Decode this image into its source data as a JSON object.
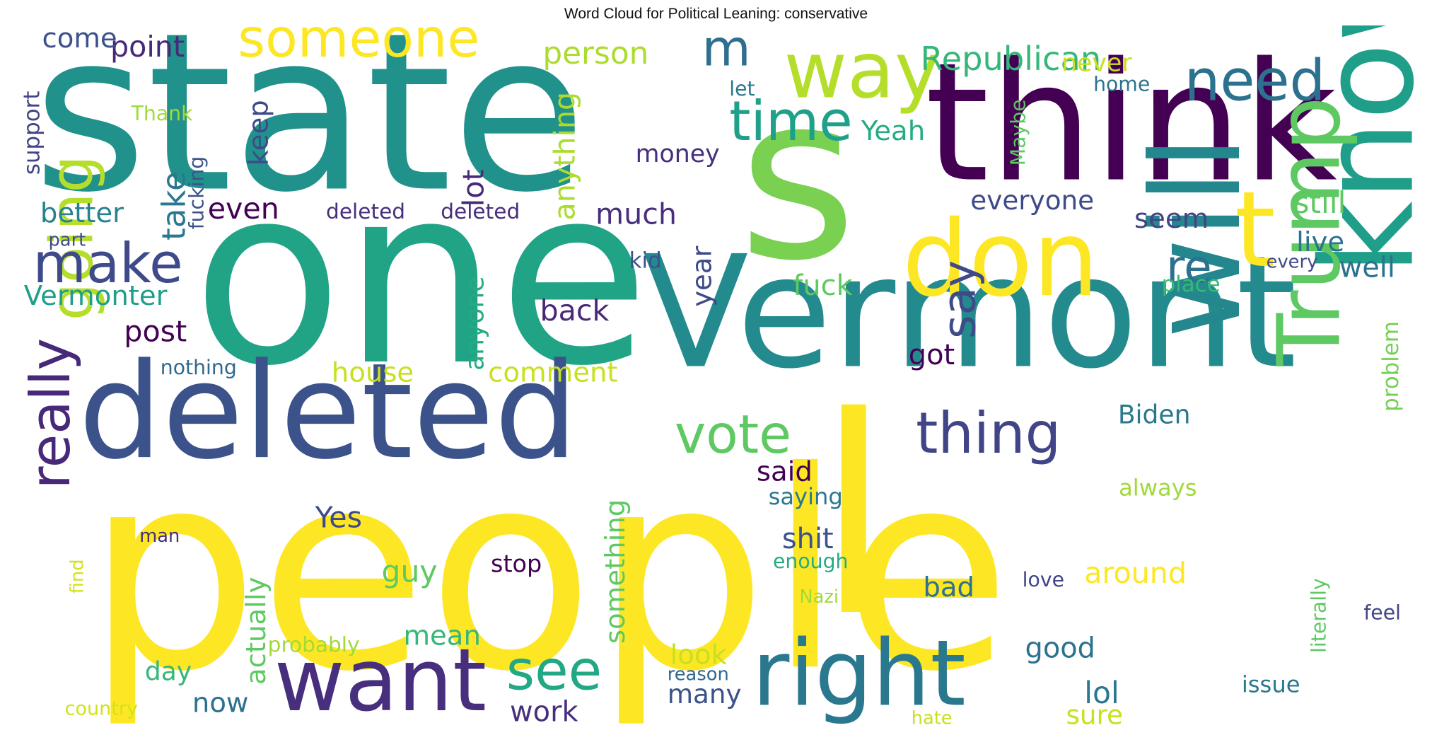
{
  "title": "Word Cloud for Political Leaning: conservative",
  "words": [
    {
      "text": "people",
      "color": "#fde725"
    },
    {
      "text": "state",
      "color": "#21918c"
    },
    {
      "text": "one",
      "color": "#21a386"
    },
    {
      "text": "think",
      "color": "#440154"
    },
    {
      "text": "Vermont",
      "color": "#238a8d"
    },
    {
      "text": "s",
      "color": "#7ad151"
    },
    {
      "text": "deleted",
      "color": "#3b528b"
    },
    {
      "text": "l",
      "color": "#fde725"
    },
    {
      "text": "will",
      "color": "#24878e"
    },
    {
      "text": "know",
      "color": "#1f9e89"
    },
    {
      "text": "don",
      "color": "#fde725"
    },
    {
      "text": "t",
      "color": "#fde725"
    },
    {
      "text": "want",
      "color": "#472f7d"
    },
    {
      "text": "right",
      "color": "#2a788e"
    },
    {
      "text": "Trump",
      "color": "#5ec962"
    },
    {
      "text": "way",
      "color": "#b5de2b"
    },
    {
      "text": "someone",
      "color": "#fde725"
    },
    {
      "text": "going",
      "color": "#b5de2b"
    },
    {
      "text": "really",
      "color": "#482878"
    },
    {
      "text": "make",
      "color": "#3e4a89"
    },
    {
      "text": "need",
      "color": "#2c728e"
    },
    {
      "text": "m",
      "color": "#2e6e8e"
    },
    {
      "text": "time",
      "color": "#1fa088"
    },
    {
      "text": "vote",
      "color": "#5ec962"
    },
    {
      "text": "thing",
      "color": "#414487"
    },
    {
      "text": "say",
      "color": "#3e4a89"
    },
    {
      "text": "see",
      "color": "#22a884"
    },
    {
      "text": "re",
      "color": "#2c728e"
    },
    {
      "text": "Republican",
      "color": "#35b779"
    },
    {
      "text": "Yeah",
      "color": "#25ab82"
    },
    {
      "text": "person",
      "color": "#addc30"
    },
    {
      "text": "point",
      "color": "#482878"
    },
    {
      "text": "come",
      "color": "#3b528b"
    },
    {
      "text": "never",
      "color": "#c8e020"
    },
    {
      "text": "let",
      "color": "#2a788e"
    },
    {
      "text": "home",
      "color": "#2c728e"
    },
    {
      "text": "Thank",
      "color": "#a0da39"
    },
    {
      "text": "support",
      "color": "#414487"
    },
    {
      "text": "fucking",
      "color": "#3b528b"
    },
    {
      "text": "keep",
      "color": "#3e4a89"
    },
    {
      "text": "anything",
      "color": "#addc30"
    },
    {
      "text": "money",
      "color": "#472f7d"
    },
    {
      "text": "Maybe",
      "color": "#5ec962"
    },
    {
      "text": "better",
      "color": "#26828e"
    },
    {
      "text": "take",
      "color": "#2a788e"
    },
    {
      "text": "lot",
      "color": "#482878"
    },
    {
      "text": "even",
      "color": "#440154"
    },
    {
      "text": "deleted",
      "color": "#472f7d"
    },
    {
      "text": "deleted",
      "color": "#472f7d"
    },
    {
      "text": "much",
      "color": "#472f7d"
    },
    {
      "text": "everyone",
      "color": "#3e4a89"
    },
    {
      "text": "seem",
      "color": "#414487"
    },
    {
      "text": "still",
      "color": "#5ec962"
    },
    {
      "text": "part",
      "color": "#3e4a89"
    },
    {
      "text": "Vermonter",
      "color": "#1f9e89"
    },
    {
      "text": "kid",
      "color": "#3b528b"
    },
    {
      "text": "year",
      "color": "#3e4a89"
    },
    {
      "text": "live",
      "color": "#2c728e"
    },
    {
      "text": "every",
      "color": "#3e4a89"
    },
    {
      "text": "well",
      "color": "#2c728e"
    },
    {
      "text": "place",
      "color": "#38b977"
    },
    {
      "text": "fuck",
      "color": "#5ec962"
    },
    {
      "text": "back",
      "color": "#482878"
    },
    {
      "text": "post",
      "color": "#440154"
    },
    {
      "text": "anyone",
      "color": "#25ab82"
    },
    {
      "text": "problem",
      "color": "#75d054"
    },
    {
      "text": "nothing",
      "color": "#31688e"
    },
    {
      "text": "house",
      "color": "#c8e020"
    },
    {
      "text": "comment",
      "color": "#c8e020"
    },
    {
      "text": "got",
      "color": "#440154"
    },
    {
      "text": "Biden",
      "color": "#2a788e"
    },
    {
      "text": "said",
      "color": "#440154"
    },
    {
      "text": "saying",
      "color": "#2a788e"
    },
    {
      "text": "always",
      "color": "#a0da39"
    },
    {
      "text": "Yes",
      "color": "#3e4a89"
    },
    {
      "text": "something",
      "color": "#5ec962"
    },
    {
      "text": "shit",
      "color": "#3b528b"
    },
    {
      "text": "enough",
      "color": "#25ab82"
    },
    {
      "text": "actually",
      "color": "#5ec962"
    },
    {
      "text": "guy",
      "color": "#5ec962"
    },
    {
      "text": "man",
      "color": "#472f7d"
    },
    {
      "text": "stop",
      "color": "#440154"
    },
    {
      "text": "around",
      "color": "#fde725"
    },
    {
      "text": "find",
      "color": "#d2e21b"
    },
    {
      "text": "Nazi",
      "color": "#a0da39"
    },
    {
      "text": "love",
      "color": "#414487"
    },
    {
      "text": "bad",
      "color": "#2c728e"
    },
    {
      "text": "literally",
      "color": "#5ec962"
    },
    {
      "text": "feel",
      "color": "#414487"
    },
    {
      "text": "mean",
      "color": "#35b779"
    },
    {
      "text": "probably",
      "color": "#a0da39"
    },
    {
      "text": "good",
      "color": "#2c728e"
    },
    {
      "text": "day",
      "color": "#35b779"
    },
    {
      "text": "look",
      "color": "#c8e020"
    },
    {
      "text": "reason",
      "color": "#31688e"
    },
    {
      "text": "issue",
      "color": "#2a788e"
    },
    {
      "text": "lol",
      "color": "#2a788e"
    },
    {
      "text": "now",
      "color": "#2c728e"
    },
    {
      "text": "many",
      "color": "#3b528b"
    },
    {
      "text": "sure",
      "color": "#c8e020"
    },
    {
      "text": "work",
      "color": "#472f7d"
    },
    {
      "text": "country",
      "color": "#d2e21b"
    },
    {
      "text": "hate",
      "color": "#c8e020"
    }
  ]
}
